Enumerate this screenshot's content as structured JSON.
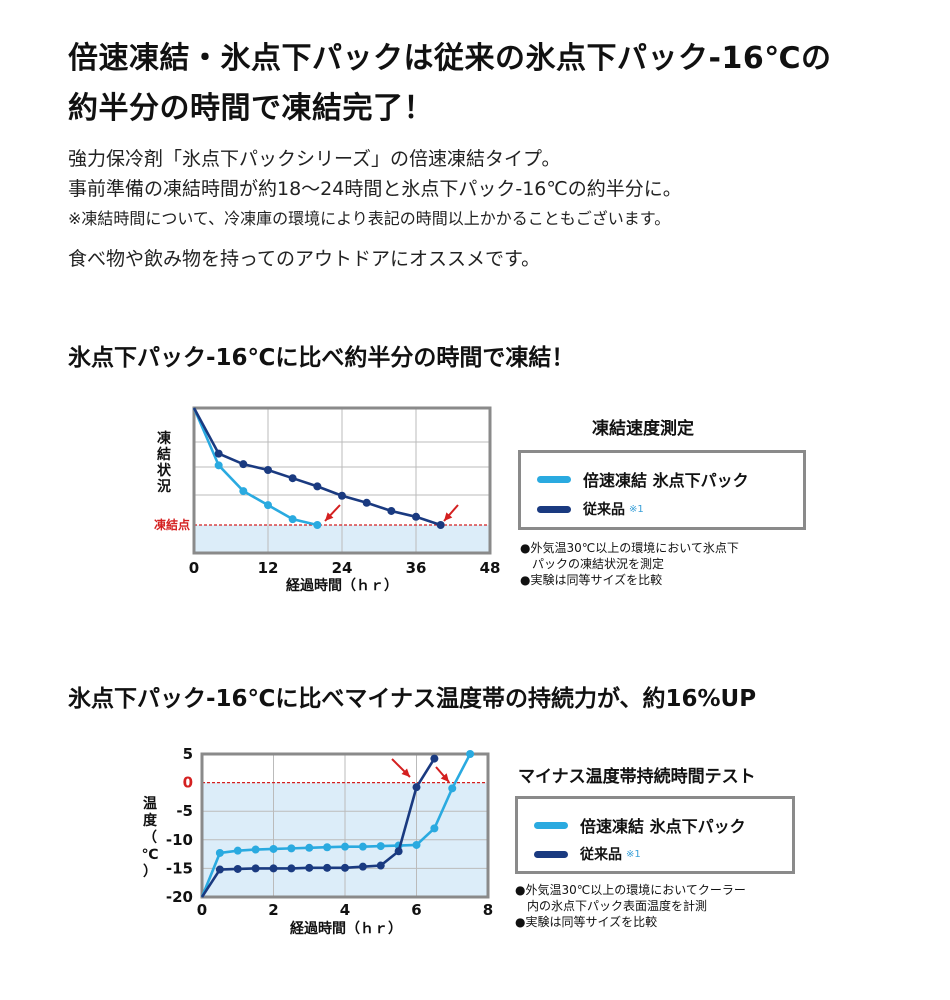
{
  "headline": [
    "倍速凍結・氷点下パックは従来の氷点下パック-16℃の",
    "約半分の時間で凍結完了！"
  ],
  "intro": {
    "line1": "強力保冷剤「氷点下パックシリーズ」の倍速凍結タイプ。",
    "line2": "事前準備の凍結時間が約18〜24時間と氷点下パック-16℃の約半分に。",
    "note": "※凍結時間について、冷凍庫の環境により表記の時間以上かかることもございます。",
    "line3": "食べ物や飲み物を持ってのアウトドアにオススメです。"
  },
  "section1": {
    "title": "氷点下パック-16℃に比べ約半分の時間で凍結！"
  },
  "section2": {
    "title": "氷点下パック-16℃に比べマイナス温度帯の持続力が、約16%UP"
  },
  "colors": {
    "fast": "#2aaae0",
    "conventional": "#1a3a80",
    "red": "#d42020",
    "fill": "#dcedf9",
    "grid": "#bbbbbb",
    "frame": "#8a8a8a"
  },
  "chart_data": [
    {
      "type": "line",
      "title": "凍結速度測定",
      "xlabel": "経過時間（ｈｒ）",
      "ylabel": "凍結状況",
      "xlim": [
        0,
        48
      ],
      "xticks": [
        "0",
        "12",
        "24",
        "36",
        "48"
      ],
      "ylim": [
        0,
        100
      ],
      "threshold": {
        "label": "凍結点",
        "value": 0
      },
      "series": [
        {
          "name": "倍速凍結 氷点下パック",
          "color": "#2aaae0",
          "x": [
            0,
            4,
            8,
            12,
            16,
            20
          ],
          "y": [
            100,
            51,
            29,
            17,
            5,
            0
          ]
        },
        {
          "name": "従来品",
          "note": "※1",
          "color": "#1a3a80",
          "x": [
            0,
            4,
            8,
            12,
            16,
            20,
            24,
            28,
            32,
            36,
            40
          ],
          "y": [
            100,
            61,
            52,
            47,
            40,
            33,
            25,
            19,
            12,
            7,
            0
          ]
        }
      ],
      "notes": [
        "●外気温30℃以上の環境において氷点下",
        "　パックの凍結状況を測定",
        "●実験は同等サイズを比較"
      ]
    },
    {
      "type": "line",
      "title": "マイナス温度帯持続時間テスト",
      "xlabel": "経過時間（ｈｒ）",
      "ylabel": "温度（℃）",
      "xlim": [
        0,
        8
      ],
      "xticks": [
        "0",
        "2",
        "4",
        "6",
        "8"
      ],
      "ylim": [
        -20,
        5
      ],
      "yticks": [
        "5",
        "0",
        "-5",
        "-10",
        "-15",
        "-20"
      ],
      "series": [
        {
          "name": "倍速凍結 氷点下パック",
          "color": "#2aaae0",
          "x": [
            0,
            0.5,
            1,
            1.5,
            2,
            2.5,
            3,
            3.5,
            4,
            4.5,
            5,
            5.5,
            6,
            6.5,
            7,
            7.5
          ],
          "y": [
            -20,
            -12.3,
            -11.9,
            -11.7,
            -11.6,
            -11.5,
            -11.4,
            -11.3,
            -11.2,
            -11.2,
            -11.1,
            -11,
            -10.9,
            -8,
            -1,
            5
          ]
        },
        {
          "name": "従来品",
          "note": "※1",
          "color": "#1a3a80",
          "x": [
            0,
            0.5,
            1,
            1.5,
            2,
            2.5,
            3,
            3.5,
            4,
            4.5,
            5,
            5.5,
            6,
            6.5
          ],
          "y": [
            -20,
            -15.2,
            -15.1,
            -15,
            -15,
            -15,
            -14.9,
            -14.9,
            -14.9,
            -14.7,
            -14.5,
            -12,
            -0.8,
            4.2
          ]
        }
      ],
      "notes": [
        "●外気温30℃以上の環境においてクーラー",
        "　内の氷点下パック表面温度を計測",
        "●実験は同等サイズを比較"
      ]
    }
  ]
}
